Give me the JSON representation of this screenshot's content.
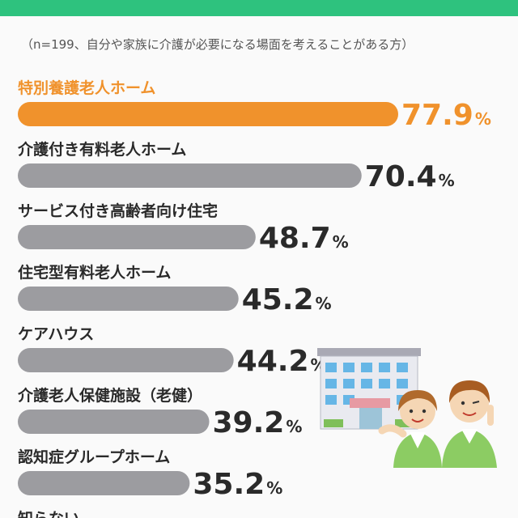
{
  "header": {
    "note": "（n=199、自分や家族に介護が必要になる場面を考えることがある方）"
  },
  "colors": {
    "accent": "#f0922c",
    "bar": "#9c9ca0",
    "top_bar": "#2ec27e"
  },
  "chart_data": {
    "type": "bar",
    "orientation": "horizontal",
    "title": "",
    "xlabel": "",
    "ylabel": "",
    "unit": "%",
    "highlight_index": 0,
    "categories": [
      "特別養護老人ホーム",
      "介護付き有料老人ホーム",
      "サービス付き高齢者向け住宅",
      "住宅型有料老人ホーム",
      "ケアハウス",
      "介護老人保健施設（老健）",
      "認知症グループホーム",
      "知らない"
    ],
    "values": [
      77.9,
      70.4,
      48.7,
      45.2,
      44.2,
      39.2,
      35.2,
      null
    ],
    "value_labels": [
      "77.9",
      "70.4",
      "48.7",
      "45.2",
      "44.2",
      "39.2",
      "35.2",
      ""
    ]
  },
  "illustration": {
    "name": "care-facility-with-staff"
  }
}
